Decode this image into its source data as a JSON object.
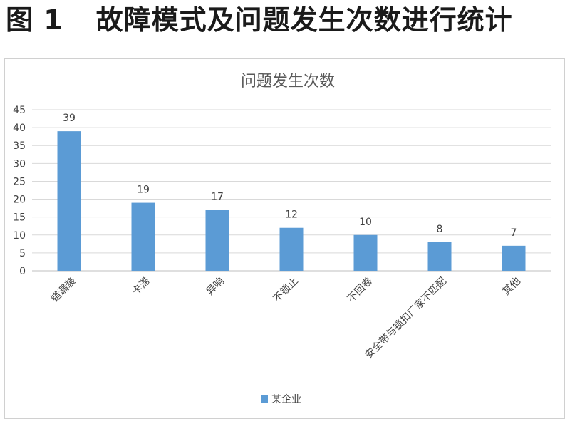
{
  "figure": {
    "number": "图 1",
    "caption": "故障模式及问题发生次数进行统计"
  },
  "chart_data": {
    "type": "bar",
    "title": "问题发生次数",
    "categories": [
      "错漏装",
      "卡滞",
      "异响",
      "不锁止",
      "不回卷",
      "安全带与锁扣厂家不匹配",
      "其他"
    ],
    "series": [
      {
        "name": "某企业",
        "values": [
          39,
          19,
          17,
          12,
          10,
          8,
          7
        ],
        "color": "#5b9bd5"
      }
    ],
    "ylim": [
      0,
      45
    ],
    "yticks": [
      0,
      5,
      10,
      15,
      20,
      25,
      30,
      35,
      40,
      45
    ],
    "grid": true,
    "data_labels": true,
    "legend_position": "bottom",
    "xlabel": "",
    "ylabel": ""
  }
}
